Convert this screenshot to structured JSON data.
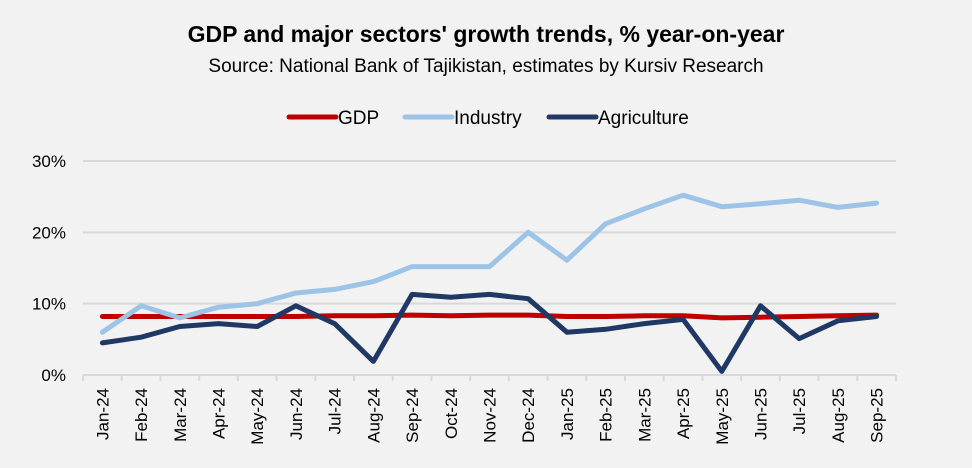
{
  "chart_data": {
    "type": "line",
    "title": "GDP and major sectors' growth trends, % year-on-year",
    "subtitle": "Source: National Bank of Tajikistan, estimates by Kursiv Research",
    "xlabel": "",
    "ylabel": "",
    "categories": [
      "Jan-24",
      "Feb-24",
      "Mar-24",
      "Apr-24",
      "May-24",
      "Jun-24",
      "Jul-24",
      "Aug-24",
      "Sep-24",
      "Oct-24",
      "Nov-24",
      "Dec-24",
      "Jan-25",
      "Feb-25",
      "Mar-25",
      "Apr-25",
      "May-25",
      "Jun-25",
      "Jul-25",
      "Aug-25",
      "Sep-25"
    ],
    "ylim": [
      0,
      30
    ],
    "yticks": [
      0,
      10,
      20,
      30
    ],
    "ytick_labels": [
      "0%",
      "10%",
      "20%",
      "30%"
    ],
    "grid": true,
    "legend_position": "top",
    "series": [
      {
        "name": "GDP",
        "color": "#C00000",
        "values": [
          8.2,
          8.2,
          8.2,
          8.2,
          8.2,
          8.2,
          8.3,
          8.3,
          8.4,
          8.3,
          8.4,
          8.4,
          8.2,
          8.2,
          8.3,
          8.3,
          8.0,
          8.1,
          8.2,
          8.3,
          8.4
        ]
      },
      {
        "name": "Industry",
        "color": "#9DC3E6",
        "values": [
          6.0,
          9.7,
          8.0,
          9.5,
          10.0,
          11.5,
          12.0,
          13.1,
          15.2,
          15.2,
          15.2,
          20.0,
          16.1,
          21.2,
          23.3,
          25.2,
          23.6,
          24.0,
          24.5,
          23.5,
          24.1
        ]
      },
      {
        "name": "Agriculture",
        "color": "#1F3864",
        "values": [
          4.5,
          5.3,
          6.8,
          7.2,
          6.8,
          9.7,
          7.2,
          1.9,
          11.3,
          10.9,
          11.3,
          10.7,
          6.0,
          6.4,
          7.2,
          7.8,
          0.5,
          9.7,
          5.1,
          7.6,
          8.2
        ]
      }
    ]
  }
}
